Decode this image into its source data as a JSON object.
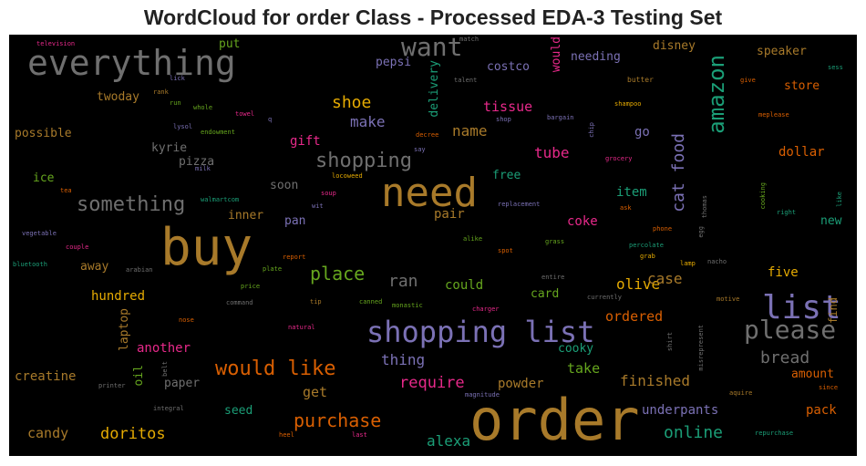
{
  "title": "WordCloud for order Class - Processed EDA-3 Testing Set",
  "words": [
    {
      "text": "order",
      "color": "#a87a2a"
    },
    {
      "text": "buy",
      "color": "#a87a2a"
    },
    {
      "text": "need",
      "color": "#a87a2a"
    },
    {
      "text": "shopping list",
      "color": "#7b71b5"
    },
    {
      "text": "everything",
      "color": "#6f6f6f"
    },
    {
      "text": "list",
      "color": "#7b71b5"
    },
    {
      "text": "please",
      "color": "#6f6f6f"
    },
    {
      "text": "want",
      "color": "#6f6f6f"
    },
    {
      "text": "amazon",
      "color": "#1b9e77"
    },
    {
      "text": "shopping",
      "color": "#6f6f6f"
    },
    {
      "text": "would like",
      "color": "#d95f02"
    },
    {
      "text": "something",
      "color": "#6f6f6f"
    },
    {
      "text": "cat food",
      "color": "#7b71b5"
    },
    {
      "text": "purchase",
      "color": "#d95f02"
    },
    {
      "text": "place",
      "color": "#66a61e"
    },
    {
      "text": "shoe",
      "color": "#e6ab02"
    },
    {
      "text": "online",
      "color": "#1b9e77"
    },
    {
      "text": "doritos",
      "color": "#e6ab02"
    },
    {
      "text": "bread",
      "color": "#6f6f6f"
    },
    {
      "text": "ran",
      "color": "#6f6f6f"
    },
    {
      "text": "require",
      "color": "#e7298a"
    },
    {
      "text": "finished",
      "color": "#a87a2a"
    },
    {
      "text": "olive",
      "color": "#e6ab02"
    },
    {
      "text": "make",
      "color": "#7b71b5"
    },
    {
      "text": "name",
      "color": "#a87a2a"
    },
    {
      "text": "tube",
      "color": "#e7298a"
    },
    {
      "text": "tissue",
      "color": "#e7298a"
    },
    {
      "text": "gift",
      "color": "#e7298a"
    },
    {
      "text": "case",
      "color": "#a87a2a"
    },
    {
      "text": "candy",
      "color": "#a87a2a"
    },
    {
      "text": "alexa",
      "color": "#1b9e77"
    },
    {
      "text": "thing",
      "color": "#7b71b5"
    },
    {
      "text": "another",
      "color": "#e7298a"
    },
    {
      "text": "take",
      "color": "#66a61e"
    },
    {
      "text": "ordered",
      "color": "#d95f02"
    },
    {
      "text": "could",
      "color": "#66a61e"
    },
    {
      "text": "hundred",
      "color": "#e6ab02"
    },
    {
      "text": "creatine",
      "color": "#a87a2a"
    },
    {
      "text": "powder",
      "color": "#a87a2a"
    },
    {
      "text": "get",
      "color": "#a87a2a"
    },
    {
      "text": "pack",
      "color": "#d95f02"
    },
    {
      "text": "amount",
      "color": "#d95f02"
    },
    {
      "text": "underpants",
      "color": "#7b71b5"
    },
    {
      "text": "five",
      "color": "#e6ab02"
    },
    {
      "text": "cooky",
      "color": "#1b9e77"
    },
    {
      "text": "card",
      "color": "#66a61e"
    },
    {
      "text": "coke",
      "color": "#e7298a"
    },
    {
      "text": "item",
      "color": "#1b9e77"
    },
    {
      "text": "pair",
      "color": "#a87a2a"
    },
    {
      "text": "free",
      "color": "#1b9e77"
    },
    {
      "text": "dollar",
      "color": "#d95f02"
    },
    {
      "text": "store",
      "color": "#d95f02"
    },
    {
      "text": "speaker",
      "color": "#a87a2a"
    },
    {
      "text": "disney",
      "color": "#a87a2a"
    },
    {
      "text": "costco",
      "color": "#7b71b5"
    },
    {
      "text": "pepsi",
      "color": "#7b71b5"
    },
    {
      "text": "needing",
      "color": "#7b71b5"
    },
    {
      "text": "go",
      "color": "#7b71b5"
    },
    {
      "text": "possible",
      "color": "#a87a2a"
    },
    {
      "text": "twoday",
      "color": "#a87a2a"
    },
    {
      "text": "kyrie",
      "color": "#6f6f6f"
    },
    {
      "text": "pizza",
      "color": "#6f6f6f"
    },
    {
      "text": "ice",
      "color": "#66a61e"
    },
    {
      "text": "soon",
      "color": "#6f6f6f"
    },
    {
      "text": "inner",
      "color": "#a87a2a"
    },
    {
      "text": "pan",
      "color": "#7b71b5"
    },
    {
      "text": "away",
      "color": "#a87a2a"
    },
    {
      "text": "paper",
      "color": "#6f6f6f"
    },
    {
      "text": "seed",
      "color": "#1b9e77"
    },
    {
      "text": "put",
      "color": "#66a61e"
    },
    {
      "text": "new",
      "color": "#1b9e77"
    },
    {
      "text": "delivery",
      "color": "#1b9e77"
    },
    {
      "text": "would",
      "color": "#e7298a"
    },
    {
      "text": "laptop",
      "color": "#a87a2a"
    },
    {
      "text": "oil",
      "color": "#66a61e"
    },
    {
      "text": "find",
      "color": "#a87a2a"
    },
    {
      "text": "television",
      "color": "#e7298a"
    },
    {
      "text": "match",
      "color": "#6f6f6f"
    },
    {
      "text": "talent",
      "color": "#6f6f6f"
    },
    {
      "text": "butter",
      "color": "#a87a2a"
    },
    {
      "text": "sess",
      "color": "#1b9e77"
    },
    {
      "text": "give",
      "color": "#d95f02"
    },
    {
      "text": "rank",
      "color": "#a87a2a"
    },
    {
      "text": "lick",
      "color": "#7b71b5"
    },
    {
      "text": "run",
      "color": "#66a61e"
    },
    {
      "text": "whole",
      "color": "#66a61e"
    },
    {
      "text": "towel",
      "color": "#e7298a"
    },
    {
      "text": "lysol",
      "color": "#7b71b5"
    },
    {
      "text": "endowment",
      "color": "#66a61e"
    },
    {
      "text": "q",
      "color": "#7b71b5"
    },
    {
      "text": "shop",
      "color": "#7b71b5"
    },
    {
      "text": "bargain",
      "color": "#7b71b5"
    },
    {
      "text": "shampoo",
      "color": "#e6ab02"
    },
    {
      "text": "meplease",
      "color": "#d95f02"
    },
    {
      "text": "decree",
      "color": "#d95f02"
    },
    {
      "text": "chip",
      "color": "#7b71b5"
    },
    {
      "text": "grocery",
      "color": "#e7298a"
    },
    {
      "text": "milk",
      "color": "#7b71b5"
    },
    {
      "text": "locoweed",
      "color": "#e6ab02"
    },
    {
      "text": "say",
      "color": "#7b71b5"
    },
    {
      "text": "tea",
      "color": "#d95f02"
    },
    {
      "text": "walmartcom",
      "color": "#1b9e77"
    },
    {
      "text": "soup",
      "color": "#e7298a"
    },
    {
      "text": "wit",
      "color": "#7b71b5"
    },
    {
      "text": "replacement",
      "color": "#7b71b5"
    },
    {
      "text": "ask",
      "color": "#d95f02"
    },
    {
      "text": "thomas",
      "color": "#6f6f6f"
    },
    {
      "text": "cooking",
      "color": "#66a61e"
    },
    {
      "text": "right",
      "color": "#1b9e77"
    },
    {
      "text": "like",
      "color": "#1b9e77"
    },
    {
      "text": "vegetable",
      "color": "#7b71b5"
    },
    {
      "text": "couple",
      "color": "#e7298a"
    },
    {
      "text": "alike",
      "color": "#66a61e"
    },
    {
      "text": "phone",
      "color": "#d95f02"
    },
    {
      "text": "egg",
      "color": "#6f6f6f"
    },
    {
      "text": "spot",
      "color": "#d95f02"
    },
    {
      "text": "grass",
      "color": "#66a61e"
    },
    {
      "text": "percolate",
      "color": "#1b9e77"
    },
    {
      "text": "report",
      "color": "#d95f02"
    },
    {
      "text": "grab",
      "color": "#e6ab02"
    },
    {
      "text": "lamp",
      "color": "#e6ab02"
    },
    {
      "text": "nacho",
      "color": "#6f6f6f"
    },
    {
      "text": "bluetooth",
      "color": "#1b9e77"
    },
    {
      "text": "arabian",
      "color": "#6f6f6f"
    },
    {
      "text": "plate",
      "color": "#66a61e"
    },
    {
      "text": "entire",
      "color": "#6f6f6f"
    },
    {
      "text": "price",
      "color": "#66a61e"
    },
    {
      "text": "command",
      "color": "#6f6f6f"
    },
    {
      "text": "tip",
      "color": "#a87a2a"
    },
    {
      "text": "canned",
      "color": "#66a61e"
    },
    {
      "text": "monastic",
      "color": "#66a61e"
    },
    {
      "text": "currently",
      "color": "#6f6f6f"
    },
    {
      "text": "motive",
      "color": "#a87a2a"
    },
    {
      "text": "charger",
      "color": "#e7298a"
    },
    {
      "text": "nose",
      "color": "#d95f02"
    },
    {
      "text": "natural",
      "color": "#e7298a"
    },
    {
      "text": "shirt",
      "color": "#6f6f6f"
    },
    {
      "text": "misrepresent",
      "color": "#6f6f6f"
    },
    {
      "text": "belt",
      "color": "#6f6f6f"
    },
    {
      "text": "printer",
      "color": "#6f6f6f"
    },
    {
      "text": "magnitude",
      "color": "#7b71b5"
    },
    {
      "text": "aquire",
      "color": "#a87a2a"
    },
    {
      "text": "since",
      "color": "#d95f02"
    },
    {
      "text": "integral",
      "color": "#6f6f6f"
    },
    {
      "text": "heel",
      "color": "#d95f02"
    },
    {
      "text": "last",
      "color": "#e7298a"
    },
    {
      "text": "repurchase",
      "color": "#1b9e77"
    }
  ]
}
